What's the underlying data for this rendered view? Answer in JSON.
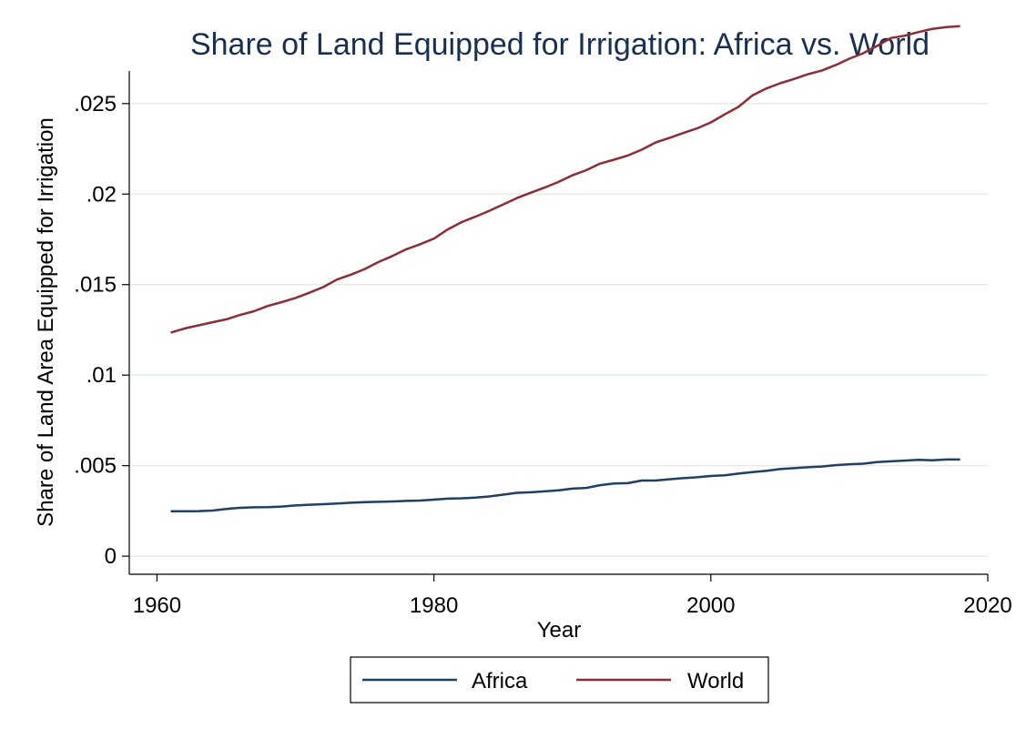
{
  "chart_data": {
    "type": "line",
    "title": "Share of Land Equipped for Irrigation: Africa vs. World",
    "xlabel": "Year",
    "ylabel": "Share of Land Area Equipped for Irrigation",
    "xlim": [
      1958,
      2020
    ],
    "ylim": [
      -0.001,
      0.0268
    ],
    "x_ticks": [
      1960,
      1980,
      2000,
      2020
    ],
    "x_tick_labels": [
      "1960",
      "1980",
      "2000",
      "2020"
    ],
    "y_ticks": [
      0,
      0.005,
      0.01,
      0.015,
      0.02,
      0.025
    ],
    "y_tick_labels": [
      "0",
      ".005",
      ".01",
      ".015",
      ".02",
      ".025"
    ],
    "grid": true,
    "legend_position": "bottom",
    "x": [
      1961,
      1962,
      1963,
      1964,
      1965,
      1966,
      1967,
      1968,
      1969,
      1970,
      1971,
      1972,
      1973,
      1974,
      1975,
      1976,
      1977,
      1978,
      1979,
      1980,
      1981,
      1982,
      1983,
      1984,
      1985,
      1986,
      1987,
      1988,
      1989,
      1990,
      1991,
      1992,
      1993,
      1994,
      1995,
      1996,
      1997,
      1998,
      1999,
      2000,
      2001,
      2002,
      2003,
      2004,
      2005,
      2006,
      2007,
      2008,
      2009,
      2010,
      2011,
      2012,
      2013,
      2014,
      2015,
      2016,
      2017,
      2018
    ],
    "series": [
      {
        "name": "Africa",
        "color": "#1f3f63",
        "values": [
          0.00248,
          0.00248,
          0.00249,
          0.00252,
          0.00261,
          0.00267,
          0.0027,
          0.00271,
          0.00274,
          0.0028,
          0.00284,
          0.00287,
          0.00291,
          0.00295,
          0.00298,
          0.003,
          0.00302,
          0.00305,
          0.00307,
          0.00312,
          0.00318,
          0.0032,
          0.00324,
          0.0033,
          0.0034,
          0.0035,
          0.00353,
          0.00358,
          0.00364,
          0.00373,
          0.00377,
          0.00392,
          0.00401,
          0.00403,
          0.00418,
          0.00418,
          0.00425,
          0.00431,
          0.00436,
          0.00443,
          0.00447,
          0.00456,
          0.00464,
          0.00471,
          0.00481,
          0.00486,
          0.00491,
          0.00495,
          0.00503,
          0.00508,
          0.00511,
          0.0052,
          0.00524,
          0.00528,
          0.00532,
          0.0053,
          0.00534,
          0.00534
        ]
      },
      {
        "name": "World",
        "color": "#8b2d35",
        "values": [
          0.01235,
          0.01258,
          0.01275,
          0.01292,
          0.01308,
          0.01332,
          0.01353,
          0.01382,
          0.01403,
          0.01426,
          0.01455,
          0.01486,
          0.01528,
          0.01555,
          0.01586,
          0.01625,
          0.01658,
          0.01695,
          0.01723,
          0.01754,
          0.01805,
          0.01845,
          0.01875,
          0.01908,
          0.01943,
          0.01978,
          0.02008,
          0.02036,
          0.02067,
          0.02104,
          0.02132,
          0.02168,
          0.0219,
          0.02213,
          0.02245,
          0.02285,
          0.0231,
          0.02337,
          0.02363,
          0.02396,
          0.0244,
          0.02482,
          0.02545,
          0.02583,
          0.02612,
          0.02636,
          0.02662,
          0.02682,
          0.02712,
          0.02748,
          0.02778,
          0.02818,
          0.02862,
          0.02875,
          0.02895,
          0.02913,
          0.02923,
          0.02928
        ]
      }
    ]
  }
}
